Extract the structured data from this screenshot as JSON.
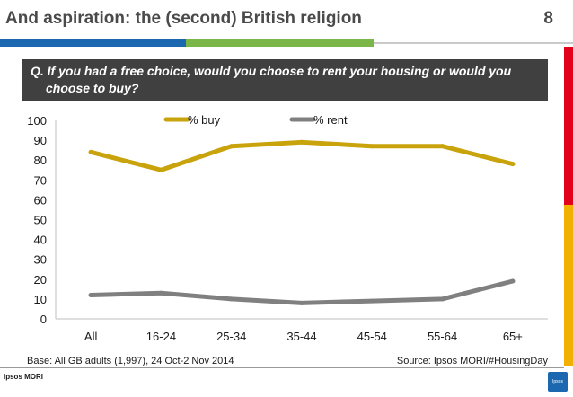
{
  "header": {
    "title": "And aspiration: the (second) British religion",
    "page_number": "8"
  },
  "question": {
    "line1": "Q. If you had a free choice, would you choose to rent your housing or would you",
    "line2": "choose to buy?"
  },
  "chart_data": {
    "type": "line",
    "categories": [
      "All",
      "16-24",
      "25-34",
      "35-44",
      "45-54",
      "55-64",
      "65+"
    ],
    "series": [
      {
        "name": "% buy",
        "values": [
          84,
          75,
          87,
          89,
          87,
          87,
          78
        ],
        "color": "#c9a30c"
      },
      {
        "name": "% rent",
        "values": [
          12,
          13,
          10,
          8,
          9,
          10,
          19
        ],
        "color": "#808080"
      }
    ],
    "ylim": [
      0,
      100
    ],
    "yticks": [
      0,
      10,
      20,
      30,
      40,
      50,
      60,
      70,
      80,
      90,
      100
    ],
    "legend_position": "top",
    "grid": false
  },
  "footer": {
    "base": "Base: All GB adults (1,997), 24 Oct-2 Nov 2014",
    "source": "Source: Ipsos MORI/#HousingDay",
    "brand": "Ipsos MORI",
    "badge": "Ipsos"
  },
  "colors": {
    "brand_blue": "#1b67b0",
    "brand_green": "#7ab648",
    "accent_red": "#e2001a",
    "accent_yellow": "#f2b100",
    "question_bg": "#404040"
  }
}
